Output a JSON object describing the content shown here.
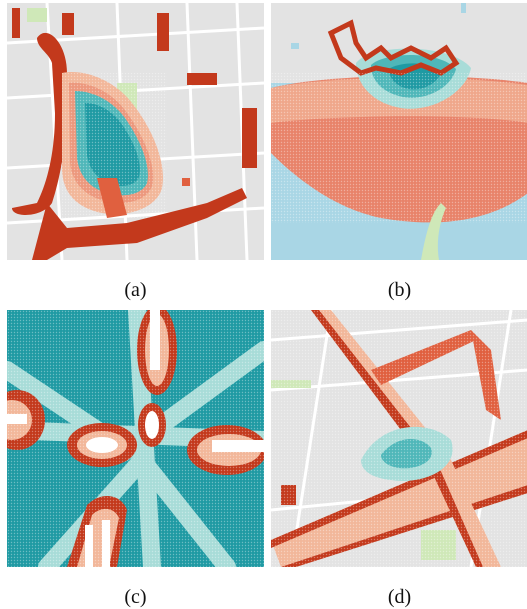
{
  "figure": {
    "panels": [
      {
        "id": "a",
        "caption": "(a)",
        "map_label": ""
      },
      {
        "id": "b",
        "caption": "(b)"
      },
      {
        "id": "c",
        "caption": "(c)"
      },
      {
        "id": "d",
        "caption": "(d)"
      }
    ]
  },
  "colors": {
    "map_base": "#e3e3e3",
    "street": "#ffffff",
    "block": "#d6d6d6",
    "park": "#cfe8b8",
    "water": "#a9d6e5",
    "heat_teal_dark": "#1f9aa3",
    "heat_teal": "#4fb7b9",
    "heat_cyan_light": "#a8dcd8",
    "heat_peach": "#f2b79a",
    "heat_salmon": "#e8836a",
    "heat_orange": "#e0603f",
    "heat_red": "#c3391c"
  }
}
